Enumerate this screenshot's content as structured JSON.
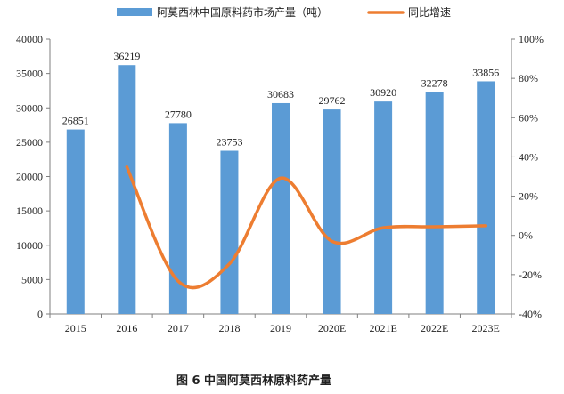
{
  "chart_data": {
    "type": "bar",
    "title": "图 6 中国阿莫西林原料药产量",
    "categories": [
      "2015",
      "2016",
      "2017",
      "2018",
      "2019",
      "2020E",
      "2021E",
      "2022E",
      "2023E"
    ],
    "series": [
      {
        "name": "阿莫西林中国原料药市场产量（吨）",
        "type": "bar",
        "axis": "left",
        "color": "#5b9bd5",
        "values": [
          26851,
          36219,
          27780,
          23753,
          30683,
          29762,
          30920,
          32278,
          33856
        ]
      },
      {
        "name": "同比增速",
        "type": "line",
        "axis": "right",
        "color": "#ed7d31",
        "smooth": true,
        "values": [
          null,
          34.9,
          -23.3,
          -14.5,
          29.2,
          -3.0,
          3.9,
          4.4,
          4.9
        ]
      }
    ],
    "y_left": {
      "min": 0,
      "max": 40000,
      "step": 5000
    },
    "y_right": {
      "min": -40,
      "max": 100,
      "step": 20,
      "unit": "%"
    },
    "legend": "top-center",
    "grid": false
  }
}
